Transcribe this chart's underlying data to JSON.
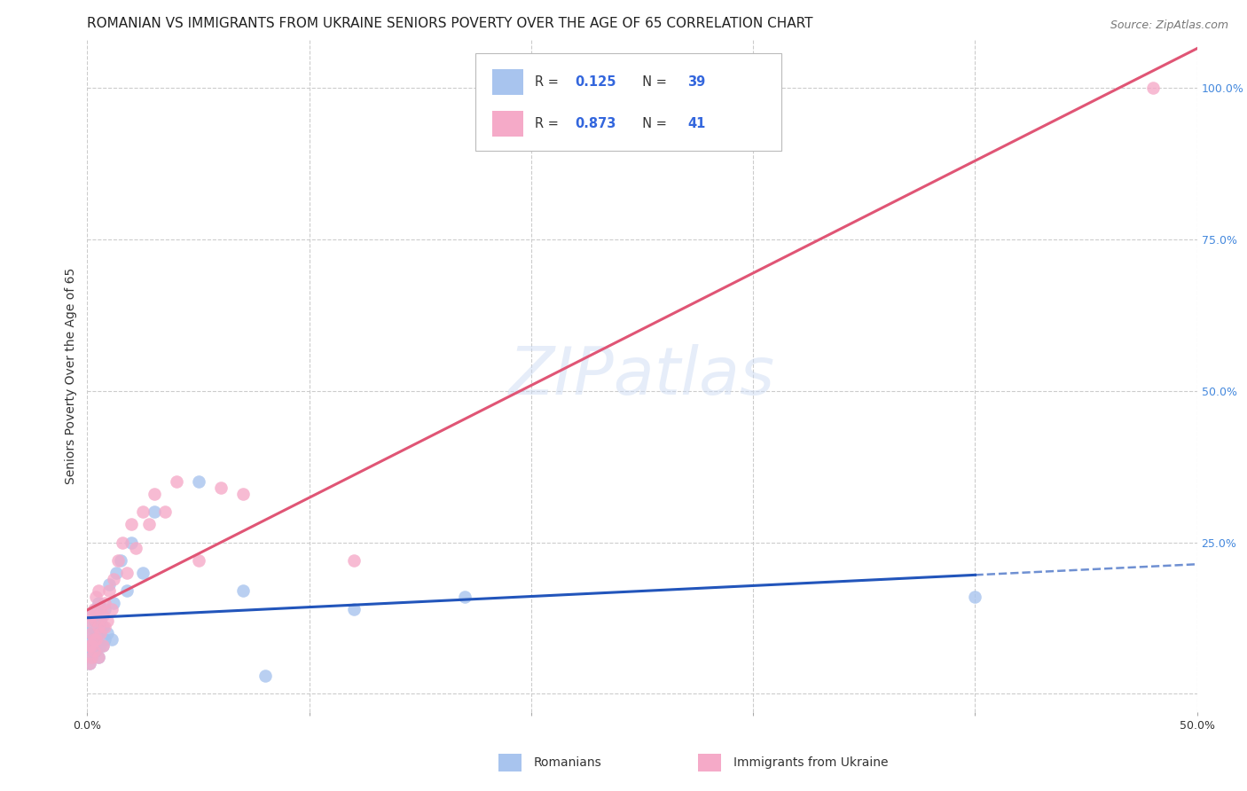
{
  "title": "ROMANIAN VS IMMIGRANTS FROM UKRAINE SENIORS POVERTY OVER THE AGE OF 65 CORRELATION CHART",
  "source": "Source: ZipAtlas.com",
  "ylabel": "Seniors Poverty Over the Age of 65",
  "xlim": [
    0.0,
    0.5
  ],
  "ylim": [
    -0.03,
    1.08
  ],
  "xticks": [
    0.0,
    0.1,
    0.2,
    0.3,
    0.4,
    0.5
  ],
  "xticklabels": [
    "0.0%",
    "",
    "",
    "",
    "",
    "50.0%"
  ],
  "yticks_right": [
    0.0,
    0.25,
    0.5,
    0.75,
    1.0
  ],
  "ytickslabels_right": [
    "",
    "25.0%",
    "50.0%",
    "75.0%",
    "100.0%"
  ],
  "romanians_R": 0.125,
  "romanians_N": 39,
  "ukraine_R": 0.873,
  "ukraine_N": 41,
  "blue_color": "#a8c4ee",
  "pink_color": "#f5aac8",
  "blue_line_color": "#2255bb",
  "pink_line_color": "#e05575",
  "watermark": "ZIPatlas",
  "romanians_x": [
    0.001,
    0.001,
    0.001,
    0.002,
    0.002,
    0.002,
    0.002,
    0.002,
    0.003,
    0.003,
    0.003,
    0.004,
    0.004,
    0.004,
    0.005,
    0.005,
    0.005,
    0.006,
    0.006,
    0.007,
    0.007,
    0.008,
    0.008,
    0.009,
    0.01,
    0.011,
    0.012,
    0.013,
    0.015,
    0.018,
    0.02,
    0.025,
    0.03,
    0.05,
    0.07,
    0.08,
    0.12,
    0.17,
    0.4
  ],
  "romanians_y": [
    0.05,
    0.08,
    0.1,
    0.06,
    0.07,
    0.09,
    0.11,
    0.13,
    0.08,
    0.1,
    0.12,
    0.07,
    0.09,
    0.14,
    0.06,
    0.1,
    0.15,
    0.08,
    0.12,
    0.08,
    0.11,
    0.09,
    0.14,
    0.1,
    0.18,
    0.09,
    0.15,
    0.2,
    0.22,
    0.17,
    0.25,
    0.2,
    0.3,
    0.35,
    0.17,
    0.03,
    0.14,
    0.16,
    0.16
  ],
  "ukraine_x": [
    0.001,
    0.001,
    0.001,
    0.002,
    0.002,
    0.002,
    0.002,
    0.003,
    0.003,
    0.003,
    0.004,
    0.004,
    0.004,
    0.005,
    0.005,
    0.005,
    0.006,
    0.006,
    0.007,
    0.007,
    0.008,
    0.008,
    0.009,
    0.01,
    0.011,
    0.012,
    0.014,
    0.016,
    0.018,
    0.02,
    0.022,
    0.025,
    0.028,
    0.03,
    0.035,
    0.04,
    0.05,
    0.06,
    0.07,
    0.12,
    0.48
  ],
  "ukraine_y": [
    0.05,
    0.08,
    0.12,
    0.06,
    0.08,
    0.1,
    0.13,
    0.07,
    0.09,
    0.14,
    0.09,
    0.12,
    0.16,
    0.06,
    0.11,
    0.17,
    0.1,
    0.14,
    0.08,
    0.13,
    0.11,
    0.15,
    0.12,
    0.17,
    0.14,
    0.19,
    0.22,
    0.25,
    0.2,
    0.28,
    0.24,
    0.3,
    0.28,
    0.33,
    0.3,
    0.35,
    0.22,
    0.34,
    0.33,
    0.22,
    1.0
  ],
  "grid_color": "#cccccc",
  "background_color": "#ffffff",
  "title_fontsize": 11,
  "source_fontsize": 9,
  "axis_label_fontsize": 10,
  "tick_fontsize": 9
}
